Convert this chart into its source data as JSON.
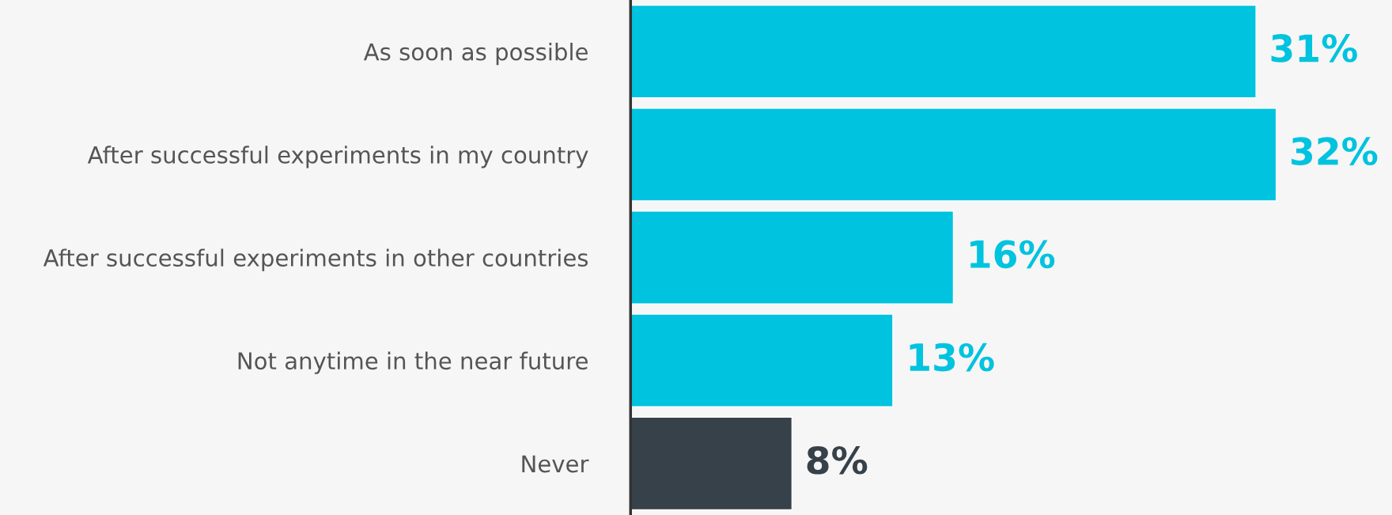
{
  "chart_data": {
    "type": "bar",
    "orientation": "horizontal",
    "categories": [
      "As soon as possible",
      "After successful experiments in my country",
      "After successful experiments in other countries",
      "Not anytime in the near future",
      "Never"
    ],
    "values": [
      31,
      32,
      16,
      13,
      8
    ],
    "colors": [
      "#00c3df",
      "#00c3df",
      "#00c3df",
      "#00c3df",
      "#37414a"
    ],
    "value_labels": [
      "31%",
      "32%",
      "16%",
      "13%",
      "8%"
    ],
    "grid": false,
    "legend": false
  }
}
